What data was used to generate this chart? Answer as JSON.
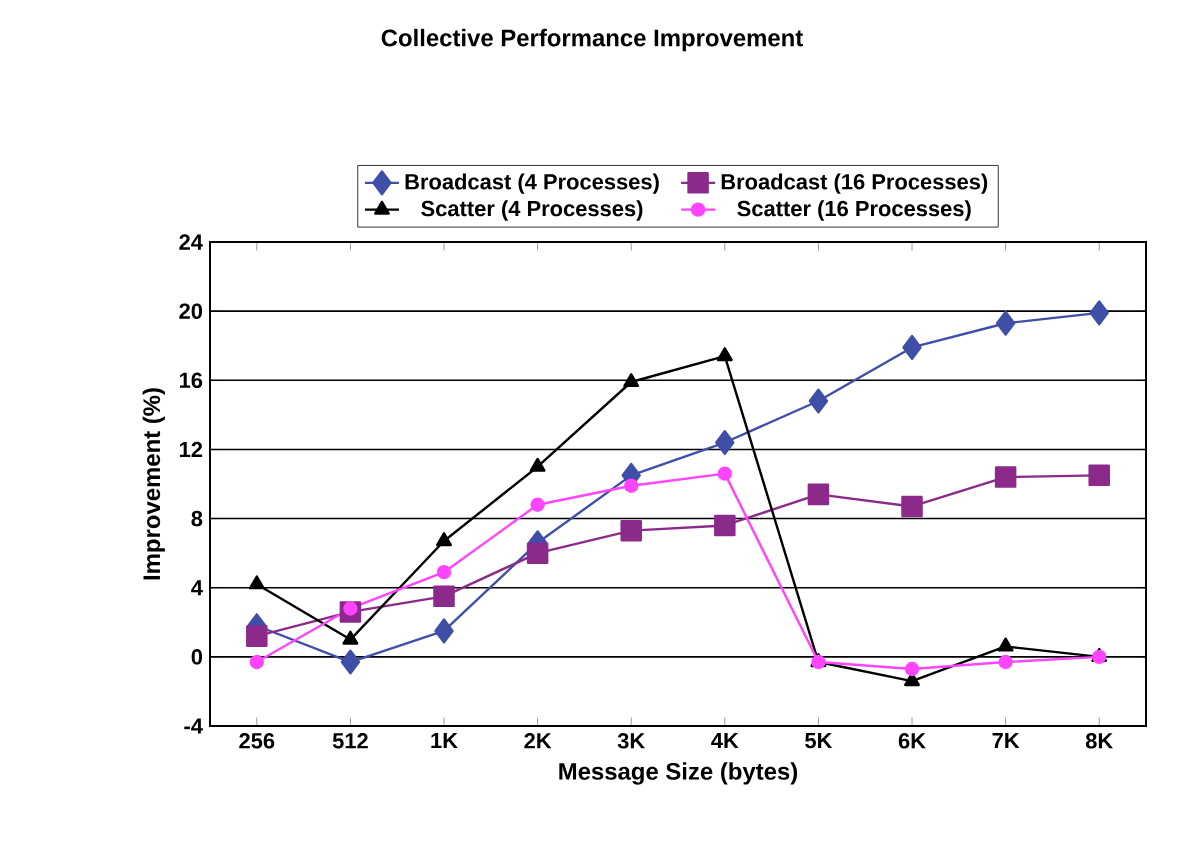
{
  "chart_data": {
    "type": "line",
    "title": "Collective Performance Improvement",
    "xlabel": "Message Size (bytes)",
    "ylabel": "Improvement (%)",
    "categories": [
      "256",
      "512",
      "1K",
      "2K",
      "3K",
      "4K",
      "5K",
      "6K",
      "7K",
      "8K"
    ],
    "ylim": [
      -4,
      24
    ],
    "yticks": [
      -4,
      0,
      4,
      8,
      12,
      16,
      20,
      24
    ],
    "grid": "y",
    "legend": "top",
    "series": [
      {
        "name": "Broadcast (4 Processes)",
        "color": "#3f4fa8",
        "marker": "diamond",
        "values": [
          1.8,
          -0.3,
          1.5,
          6.6,
          10.5,
          12.4,
          14.8,
          17.9,
          19.3,
          19.9
        ]
      },
      {
        "name": "Broadcast (16 Processes)",
        "color": "#8b2a8b",
        "marker": "square",
        "values": [
          1.2,
          2.6,
          3.5,
          6.0,
          7.3,
          7.6,
          9.4,
          8.7,
          10.4,
          10.5
        ]
      },
      {
        "name": "Scatter (4 Processes)",
        "color": "#000000",
        "marker": "triangle",
        "values": [
          4.2,
          1.0,
          6.7,
          11.0,
          15.9,
          17.4,
          -0.3,
          -1.4,
          0.6,
          0.0
        ]
      },
      {
        "name": "Scatter (16 Processes)",
        "color": "#ff44ff",
        "marker": "circle",
        "values": [
          -0.3,
          2.8,
          4.9,
          8.8,
          9.9,
          10.6,
          -0.3,
          -0.7,
          -0.3,
          0.0
        ]
      }
    ]
  }
}
